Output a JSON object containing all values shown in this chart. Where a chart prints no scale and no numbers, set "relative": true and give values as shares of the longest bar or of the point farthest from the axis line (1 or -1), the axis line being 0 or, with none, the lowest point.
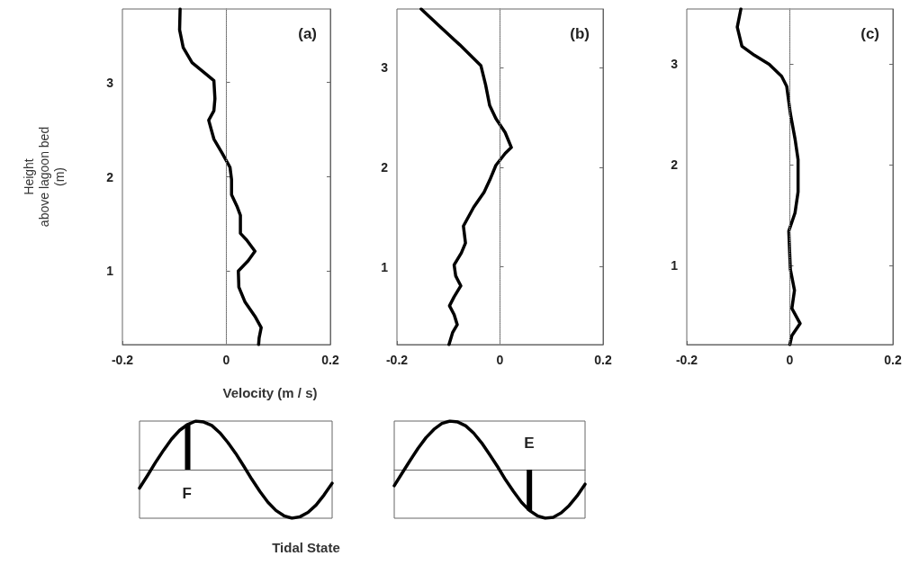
{
  "chart_data": [
    {
      "type": "line",
      "title": "(a)",
      "xlabel": "Velocity (m / s)",
      "ylabel": "Height\nabove lagoon bed\n(m)",
      "color": "#000000",
      "marker": "none",
      "x": [
        -0.089,
        -0.09,
        -0.083,
        -0.066,
        -0.037,
        -0.024,
        -0.022,
        -0.024,
        -0.034,
        -0.028,
        -0.024,
        -0.008,
        0.007,
        0.01,
        0.01,
        0.021,
        0.027,
        0.027,
        0.039,
        0.055,
        0.042,
        0.023,
        0.024,
        0.036,
        0.056,
        0.067,
        0.063,
        0.062
      ],
      "values": [
        3.78,
        3.56,
        3.37,
        3.21,
        3.08,
        3.02,
        2.83,
        2.7,
        2.6,
        2.48,
        2.4,
        2.25,
        2.1,
        1.97,
        1.81,
        1.68,
        1.59,
        1.4,
        1.33,
        1.21,
        1.11,
        1.0,
        0.83,
        0.67,
        0.51,
        0.4,
        0.29,
        0.22
      ],
      "xlim": [
        -0.2,
        0.2
      ],
      "xticks": [
        -0.2,
        0,
        0.2
      ],
      "ylim": [
        0.22,
        3.78
      ],
      "yticks": [
        1,
        2,
        3
      ],
      "ref_lines": [
        {
          "axis": "x",
          "value": 0,
          "label": null,
          "color": "#999999",
          "line_style": "dotted"
        }
      ]
    },
    {
      "type": "line",
      "title": "(b)",
      "color": "#000000",
      "marker": "none",
      "x": [
        -0.153,
        -0.118,
        -0.078,
        -0.037,
        -0.028,
        -0.02,
        -0.008,
        0.01,
        0.022,
        0.01,
        -0.008,
        -0.02,
        -0.031,
        -0.051,
        -0.071,
        -0.067,
        -0.075,
        -0.089,
        -0.086,
        -0.076,
        -0.089,
        -0.098,
        -0.089,
        -0.083,
        -0.092,
        -0.099
      ],
      "values": [
        3.59,
        3.42,
        3.23,
        3.02,
        2.83,
        2.62,
        2.49,
        2.35,
        2.2,
        2.14,
        2.02,
        1.87,
        1.75,
        1.6,
        1.41,
        1.24,
        1.14,
        1.02,
        0.91,
        0.81,
        0.7,
        0.61,
        0.52,
        0.42,
        0.34,
        0.22
      ],
      "xlim": [
        -0.2,
        0.2
      ],
      "xticks": [
        -0.2,
        0,
        0.2
      ],
      "ylim": [
        0.22,
        3.59
      ],
      "yticks": [
        1,
        2,
        3
      ],
      "ref_lines": [
        {
          "axis": "x",
          "value": 0,
          "label": null,
          "color": "#999999",
          "line_style": "dotted"
        }
      ]
    },
    {
      "type": "line",
      "title": "(c)",
      "color": "#000000",
      "marker": "none",
      "x": [
        -0.095,
        -0.102,
        -0.093,
        -0.069,
        -0.04,
        -0.016,
        -0.006,
        0.001,
        0.01,
        0.016,
        0.016,
        0.01,
        -0.002,
        0.001,
        0.009,
        0.004,
        0.02,
        0.004,
        0.0
      ],
      "values": [
        3.55,
        3.37,
        3.18,
        3.09,
        3.0,
        2.88,
        2.78,
        2.51,
        2.26,
        2.05,
        1.73,
        1.52,
        1.34,
        0.96,
        0.75,
        0.57,
        0.42,
        0.3,
        0.21
      ],
      "xlim": [
        -0.2,
        0.2
      ],
      "xticks": [
        -0.2,
        0,
        0.2
      ],
      "ylim": [
        0.21,
        3.55
      ],
      "yticks": [
        1,
        2,
        3
      ],
      "ref_lines": [
        {
          "axis": "x",
          "value": 0,
          "label": null,
          "color": "#999999",
          "line_style": "dotted"
        }
      ]
    },
    {
      "type": "line",
      "xlabel": "Tidal State",
      "relative": true,
      "marker": "none",
      "annotations": [
        "F"
      ],
      "color": "#000000",
      "categories": [
        null,
        null,
        null,
        null,
        null,
        null,
        null,
        null,
        null,
        null,
        null,
        null,
        null,
        null,
        null,
        null,
        null,
        null,
        null,
        null,
        null,
        null,
        null,
        null,
        null
      ],
      "values": [
        -0.38,
        -0.12,
        0.15,
        0.4,
        0.63,
        0.81,
        0.93,
        1,
        0.98,
        0.91,
        0.76,
        0.56,
        0.33,
        0.07,
        -0.2,
        -0.45,
        -0.67,
        -0.84,
        -0.95,
        -1,
        -0.97,
        -0.88,
        -0.73,
        -0.52,
        -0.28
      ]
    },
    {
      "type": "line",
      "relative": true,
      "marker": "none",
      "annotations": [
        "E"
      ],
      "color": "#000000",
      "categories": [
        null,
        null,
        null,
        null,
        null,
        null,
        null,
        null,
        null,
        null,
        null,
        null,
        null,
        null,
        null,
        null,
        null,
        null,
        null,
        null,
        null,
        null,
        null,
        null,
        null
      ],
      "values": [
        -0.33,
        -0.07,
        0.19,
        0.44,
        0.66,
        0.83,
        0.95,
        1,
        0.98,
        0.9,
        0.75,
        0.55,
        0.31,
        0.06,
        -0.21,
        -0.45,
        -0.67,
        -0.84,
        -0.95,
        -1,
        -0.98,
        -0.89,
        -0.74,
        -0.54,
        -0.3
      ]
    }
  ]
}
